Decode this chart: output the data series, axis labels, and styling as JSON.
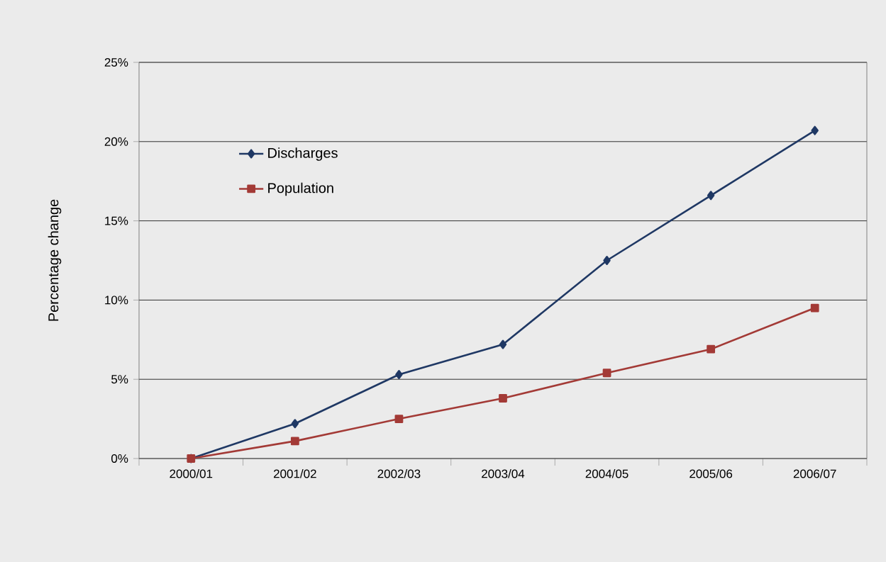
{
  "chart_data": {
    "type": "line",
    "ylabel": "Percentage change",
    "categories": [
      "2000/01",
      "2001/02",
      "2002/03",
      "2003/04",
      "2004/05",
      "2005/06",
      "2006/07"
    ],
    "series": [
      {
        "name": "Discharges",
        "color": "#1f3864",
        "marker": "diamond",
        "values": [
          0,
          2.2,
          5.3,
          7.2,
          12.5,
          16.6,
          20.7
        ]
      },
      {
        "name": "Population",
        "color": "#a33a36",
        "marker": "square",
        "values": [
          0,
          1.1,
          2.5,
          3.8,
          5.4,
          6.9,
          9.5
        ]
      }
    ],
    "ylim": [
      0,
      25
    ],
    "yticks": [
      {
        "value": 0,
        "label": "0%"
      },
      {
        "value": 5,
        "label": "5%"
      },
      {
        "value": 10,
        "label": "10%"
      },
      {
        "value": 15,
        "label": "15%"
      },
      {
        "value": 20,
        "label": "20%"
      },
      {
        "value": 25,
        "label": "25%"
      }
    ],
    "grid": "y",
    "legend": "top left",
    "line_style": "solid"
  }
}
